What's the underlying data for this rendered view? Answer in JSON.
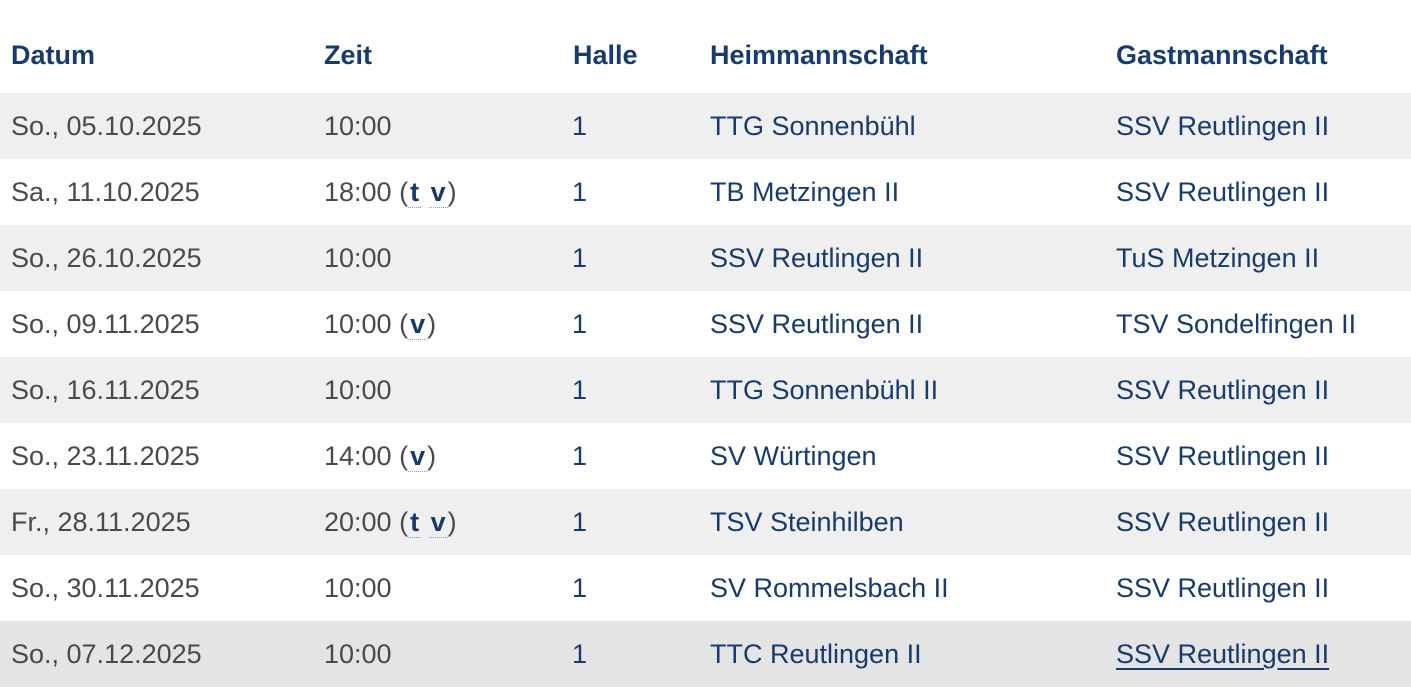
{
  "table": {
    "headers": {
      "date": "Datum",
      "time": "Zeit",
      "hall": "Halle",
      "home": "Heimmannschaft",
      "guest": "Gastmannschaft"
    },
    "rows": [
      {
        "date": "So., 05.10.2025",
        "time": "10:00",
        "flags": [],
        "hall": "1",
        "home": "TTG Sonnenbühl",
        "guest": "SSV Reutlingen II"
      },
      {
        "date": "Sa., 11.10.2025",
        "time": "18:00",
        "flags": [
          "t",
          "v"
        ],
        "hall": "1",
        "home": "TB Metzingen II",
        "guest": "SSV Reutlingen II"
      },
      {
        "date": "So., 26.10.2025",
        "time": "10:00",
        "flags": [],
        "hall": "1",
        "home": "SSV Reutlingen II",
        "guest": "TuS Metzingen II"
      },
      {
        "date": "So., 09.11.2025",
        "time": "10:00",
        "flags": [
          "v"
        ],
        "hall": "1",
        "home": "SSV Reutlingen II",
        "guest": "TSV Sondelfingen II"
      },
      {
        "date": "So., 16.11.2025",
        "time": "10:00",
        "flags": [],
        "hall": "1",
        "home": "TTG Sonnenbühl II",
        "guest": "SSV Reutlingen II"
      },
      {
        "date": "So., 23.11.2025",
        "time": "14:00",
        "flags": [
          "v"
        ],
        "hall": "1",
        "home": "SV Würtingen",
        "guest": "SSV Reutlingen II"
      },
      {
        "date": "Fr., 28.11.2025",
        "time": "20:00",
        "flags": [
          "t",
          "v"
        ],
        "hall": "1",
        "home": "TSV Steinhilben",
        "guest": "SSV Reutlingen II"
      },
      {
        "date": "So., 30.11.2025",
        "time": "10:00",
        "flags": [],
        "hall": "1",
        "home": "SV Rommelsbach II",
        "guest": "SSV Reutlingen II"
      },
      {
        "date": "So., 07.12.2025",
        "time": "10:00",
        "flags": [],
        "hall": "1",
        "home": "TTC Reutlingen II",
        "guest": "SSV Reutlingen II",
        "hovered": true
      }
    ]
  },
  "colors": {
    "header_text": "#173b6c",
    "link_text": "#173b6c",
    "body_text": "#4a4a4a",
    "row_stripe": "#efefef",
    "row_hover": "#e4e4e4"
  }
}
